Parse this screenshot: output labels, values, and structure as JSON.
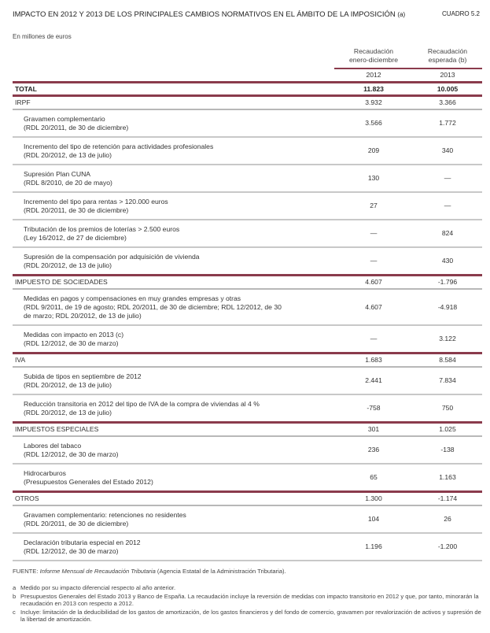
{
  "title": "IMPACTO EN 2012 Y 2013 DE LOS PRINCIPALES CAMBIOS NORMATIVOS EN EL ÁMBITO DE LA IMPOSICIÓN",
  "title_note": "(a)",
  "table_id": "CUADRO 5.2",
  "unit": "En millones de euros",
  "columns": [
    {
      "line1": "Recaudación",
      "line2": "enero-diciembre",
      "year": "2012"
    },
    {
      "line1": "Recaudación",
      "line2": "esperada (b)",
      "year": "2013"
    }
  ],
  "total": {
    "label": "TOTAL",
    "v2012": "11.823",
    "v2013": "10.005"
  },
  "sections": [
    {
      "label": "IRPF",
      "v2012": "3.932",
      "v2013": "3.366",
      "items": [
        {
          "l1": "Gravamen complementario",
          "l2": "(RDL 20/2011, de 30 de diciembre)",
          "v2012": "3.566",
          "v2013": "1.772"
        },
        {
          "l1": "Incremento del tipo de retención para actividades profesionales",
          "l2": "(RDL 20/2012, de 13 de julio)",
          "v2012": "209",
          "v2013": "340"
        },
        {
          "l1": "Supresión Plan CUNA",
          "l2": "(RDL 8/2010, de 20 de mayo)",
          "v2012": "130",
          "v2013": "—"
        },
        {
          "l1": "Incremento del tipo para rentas > 120.000 euros",
          "l2": "(RDL 20/2011, de 30 de diciembre)",
          "v2012": "27",
          "v2013": "—"
        },
        {
          "l1": "Tributación de los premios de loterías > 2.500 euros",
          "l2": "(Ley 16/2012, de 27 de diciembre)",
          "v2012": "—",
          "v2013": "824"
        },
        {
          "l1": "Supresión de la compensación por adquisición de vivienda",
          "l2": "(RDL 20/2012, de 13 de julio)",
          "v2012": "—",
          "v2013": "430"
        }
      ]
    },
    {
      "label": "IMPUESTO DE SOCIEDADES",
      "v2012": "4.607",
      "v2013": "-1.796",
      "items": [
        {
          "l1": "Medidas en pagos y compensaciones en muy grandes empresas y otras",
          "l2": "(RDL 9/2011, de 19 de agosto; RDL 20/2011, de 30 de diciembre; RDL 12/2012, de 30",
          "l3": "de marzo; RDL 20/2012, de 13 de julio)",
          "v2012": "4.607",
          "v2013": "-4.918"
        },
        {
          "l1": "Medidas con impacto en 2013 (c)",
          "l2": "(RDL 12/2012, de 30 de marzo)",
          "v2012": "—",
          "v2013": "3.122"
        }
      ]
    },
    {
      "label": "IVA",
      "v2012": "1.683",
      "v2013": "8.584",
      "items": [
        {
          "l1": "Subida de tipos en septiembre de 2012",
          "l2": "(RDL 20/2012, de 13 de julio)",
          "v2012": "2.441",
          "v2013": "7.834"
        },
        {
          "l1": "Reducción transitoria en 2012 del tipo de IVA de la compra de viviendas al 4 %",
          "l2": "(RDL 20/2012, de 13 de julio)",
          "v2012": "-758",
          "v2013": "750"
        }
      ]
    },
    {
      "label": "IMPUESTOS ESPECIALES",
      "v2012": "301",
      "v2013": "1.025",
      "items": [
        {
          "l1": "Labores del tabaco",
          "l2": "(RDL 12/2012, de 30 de marzo)",
          "v2012": "236",
          "v2013": "-138"
        },
        {
          "l1": "Hidrocarburos",
          "l2": "(Presupuestos Generales del Estado 2012)",
          "v2012": "65",
          "v2013": "1.163"
        }
      ]
    },
    {
      "label": "OTROS",
      "v2012": "1.300",
      "v2013": "-1.174",
      "items": [
        {
          "l1": "Gravamen complementario: retenciones no residentes",
          "l2": "(RDL 20/2011, de 30 de diciembre)",
          "v2012": "104",
          "v2013": "26"
        },
        {
          "l1": "Declaración tributaria especial en 2012",
          "l2": "(RDL 12/2012, de 30 de marzo)",
          "v2012": "1.196",
          "v2013": "-1.200"
        }
      ]
    }
  ],
  "source": {
    "label": "FUENTE:",
    "italic": "Informe Mensual de Recaudación Tributaria",
    "rest": "(Agencia Estatal de la Administración Tributaria)."
  },
  "notes": [
    {
      "key": "a",
      "text": "Medido por su impacto diferencial respecto al año anterior."
    },
    {
      "key": "b",
      "text": "Presupuestos Generales del Estado 2013 y Banco de España. La recaudación incluye la reversión de medidas con impacto transitorio en 2012 y que, por tanto, minorarán la recaudación en 2013 con respecto a 2012."
    },
    {
      "key": "c",
      "text": "Incluye: limitación de la deducibilidad de los gastos de amortización, de los gastos financieros y del fondo de comercio, gravamen por revalorización de activos y supresión de la libertad de amortización."
    }
  ],
  "colors": {
    "rule_major": "#8a3b4c",
    "rule_minor": "#c8c8c8"
  }
}
